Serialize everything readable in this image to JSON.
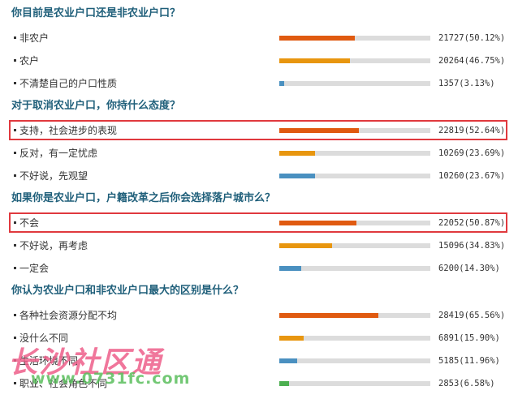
{
  "colors": {
    "question_text": "#1f5f7a",
    "bar_orange_red": "#e05a10",
    "bar_amber": "#e8960f",
    "bar_blue": "#4a90c0",
    "bar_green": "#4caf50",
    "bar_track": "#dcdcdc",
    "highlight_border": "#e0393e"
  },
  "questions": [
    {
      "title": "你目前是农业户口还是非农业户口？",
      "options": [
        {
          "label": "非农户",
          "count": "21727",
          "percent": "(50.12%)",
          "share": 0.5012,
          "color": "#e05a10"
        },
        {
          "label": "农户",
          "count": "20264",
          "percent": "(46.75%)",
          "share": 0.4675,
          "color": "#e8960f"
        },
        {
          "label": "不清楚自己的户口性质",
          "count": "1357",
          "percent": "(3.13%)",
          "share": 0.0313,
          "color": "#4a90c0"
        }
      ]
    },
    {
      "title": "对于取消农业户口，你持什么态度？",
      "options": [
        {
          "label": "支持，社会进步的表现",
          "count": "22819",
          "percent": "(52.64%)",
          "share": 0.5264,
          "color": "#e05a10",
          "highlighted": true
        },
        {
          "label": "反对，有一定忧虑",
          "count": "10269",
          "percent": "(23.69%)",
          "share": 0.2369,
          "color": "#e8960f"
        },
        {
          "label": "不好说，先观望",
          "count": "10260",
          "percent": "(23.67%)",
          "share": 0.2367,
          "color": "#4a90c0"
        }
      ]
    },
    {
      "title": "如果你是农业户口，户籍改革之后你会选择落户城市么？",
      "options": [
        {
          "label": "不会",
          "count": "22052",
          "percent": "(50.87%)",
          "share": 0.5087,
          "color": "#e05a10",
          "highlighted": true
        },
        {
          "label": "不好说，再考虑",
          "count": "15096",
          "percent": "(34.83%)",
          "share": 0.3483,
          "color": "#e8960f"
        },
        {
          "label": "一定会",
          "count": "6200",
          "percent": "(14.30%)",
          "share": 0.143,
          "color": "#4a90c0"
        }
      ]
    },
    {
      "title": "你认为农业户口和非农业户口最大的区别是什么？",
      "options": [
        {
          "label": "各种社会资源分配不均",
          "count": "28419",
          "percent": "(65.56%)",
          "share": 0.6556,
          "color": "#e05a10"
        },
        {
          "label": "没什么不同",
          "count": "6891",
          "percent": "(15.90%)",
          "share": 0.159,
          "color": "#e8960f"
        },
        {
          "label": "生活环境不同",
          "count": "5185",
          "percent": "(11.96%)",
          "share": 0.1196,
          "color": "#4a90c0"
        },
        {
          "label": "职业、社会角色不同",
          "count": "2853",
          "percent": "(6.58%)",
          "share": 0.0658,
          "color": "#4caf50"
        }
      ]
    }
  ],
  "watermark": {
    "big": "长沙社区通",
    "small": "www.0731fc.com"
  }
}
